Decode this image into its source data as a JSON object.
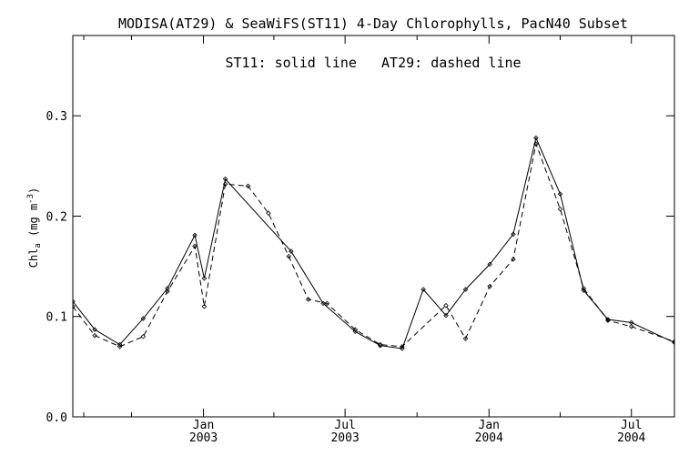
{
  "chart_data": {
    "type": "line",
    "title": "MODISA(AT29) & SeaWiFS(ST11) 4-Day Chlorophylls, PacN40 Subset",
    "annotation": "ST11: solid line   AT29: dashed line",
    "ylabel": "Chl",
    "ylabel_sub": "a",
    "ylabel_unit": "(mg m",
    "ylabel_sup": "-3",
    "ylabel_close": ")",
    "ylim": [
      0,
      0.38
    ],
    "xlim": [
      "2002-07-18",
      "2004-08-25"
    ],
    "grid": false,
    "y_ticks": [
      {
        "value": 0.0,
        "label": "0.0"
      },
      {
        "value": 0.1,
        "label": "0.1"
      },
      {
        "value": 0.2,
        "label": "0.2"
      },
      {
        "value": 0.3,
        "label": "0.3"
      }
    ],
    "x_major_ticks": [
      {
        "date": "2003-01-01",
        "month": "Jan",
        "year": "2003"
      },
      {
        "date": "2003-07-01",
        "month": "Jul",
        "year": "2003"
      },
      {
        "date": "2004-01-01",
        "month": "Jan",
        "year": "2004"
      },
      {
        "date": "2004-07-01",
        "month": "Jul",
        "year": "2004"
      }
    ],
    "x_minor_ticks": [
      "2002-08-01",
      "2002-10-01",
      "2003-04-01",
      "2003-10-01",
      "2004-04-01"
    ],
    "series": [
      {
        "name": "ST11",
        "style": "solid",
        "x": [
          "2002-07-18",
          "2002-08-15",
          "2002-09-16",
          "2002-10-16",
          "2002-11-16",
          "2002-12-21",
          "2003-01-02",
          "2003-01-29",
          "2003-04-23",
          "2003-06-03",
          "2003-07-14",
          "2003-08-15",
          "2003-09-12",
          "2003-10-09",
          "2003-11-07",
          "2003-12-02",
          "2004-01-02",
          "2004-02-01",
          "2004-03-01",
          "2004-04-01",
          "2004-05-01",
          "2004-06-01",
          "2004-07-01",
          "2004-08-25"
        ],
        "y": [
          0.115,
          0.087,
          0.072,
          0.098,
          0.128,
          0.181,
          0.138,
          0.237,
          0.165,
          0.113,
          0.085,
          0.071,
          0.068,
          0.127,
          0.101,
          0.127,
          0.152,
          0.182,
          0.278,
          0.222,
          0.126,
          0.097,
          0.094,
          0.074
        ]
      },
      {
        "name": "AT29",
        "style": "dashed",
        "x": [
          "2002-07-18",
          "2002-08-15",
          "2002-09-16",
          "2002-10-16",
          "2002-11-16",
          "2002-12-21",
          "2003-01-02",
          "2003-01-29",
          "2003-02-27",
          "2003-03-25",
          "2003-04-20",
          "2003-05-15",
          "2003-06-08",
          "2003-07-14",
          "2003-08-15",
          "2003-09-12",
          "2003-11-07",
          "2003-12-02",
          "2004-01-02",
          "2004-02-01",
          "2004-03-01",
          "2004-04-01",
          "2004-05-01",
          "2004-06-01",
          "2004-07-01",
          "2004-08-25"
        ],
        "y": [
          0.11,
          0.081,
          0.07,
          0.08,
          0.125,
          0.17,
          0.11,
          0.232,
          0.23,
          0.203,
          0.16,
          0.117,
          0.113,
          0.087,
          0.072,
          0.07,
          0.111,
          0.078,
          0.13,
          0.157,
          0.272,
          0.207,
          0.128,
          0.096,
          0.09,
          0.075
        ]
      }
    ]
  }
}
